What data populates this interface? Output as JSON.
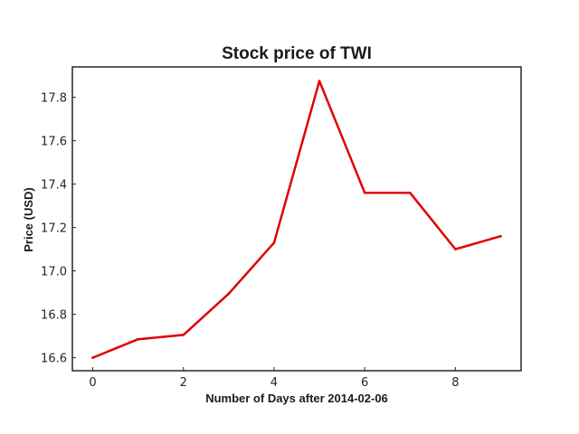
{
  "chart_data": {
    "type": "line",
    "title": "Stock price of TWI",
    "xlabel": "Number of Days after 2014-02-06",
    "ylabel": "Price (USD)",
    "x": [
      0,
      1,
      2,
      3,
      4,
      5,
      6,
      7,
      8,
      9
    ],
    "series": [
      {
        "values": [
          16.6,
          16.685,
          16.705,
          16.895,
          17.13,
          17.875,
          17.36,
          17.36,
          17.1,
          17.16
        ],
        "color": "#e00000"
      }
    ],
    "xlim": [
      -0.45,
      9.45
    ],
    "ylim": [
      16.54,
      17.94
    ],
    "xticks": [
      0,
      2,
      4,
      6,
      8
    ],
    "xtick_labels": [
      "0",
      "2",
      "4",
      "6",
      "8"
    ],
    "yticks": [
      16.6,
      16.8,
      17.0,
      17.2,
      17.4,
      17.6,
      17.8
    ],
    "ytick_labels": [
      "16.6",
      "16.8",
      "17.0",
      "17.2",
      "17.4",
      "17.6",
      "17.8"
    ],
    "grid": false,
    "legend": "none"
  }
}
